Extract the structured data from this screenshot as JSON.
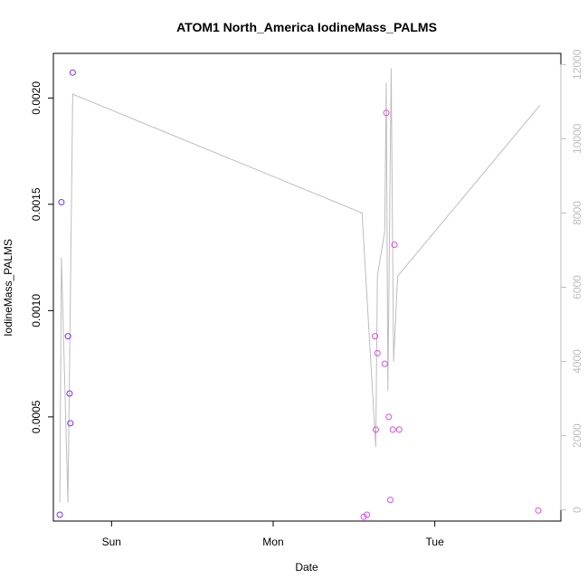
{
  "chart_data": {
    "type": "scatter",
    "title": "ATOM1 North_America IodineMass_PALMS",
    "xlabel": "Date",
    "ylabel": "IodineMass_PALMS",
    "x_ticks": [
      "Sun",
      "Mon",
      "Tue"
    ],
    "y_ticks": [
      "0.0005",
      "0.0010",
      "0.0015",
      "0.0020"
    ],
    "y2_ticks": [
      "0",
      "2000",
      "4000",
      "6000",
      "8000",
      "10000",
      "12000"
    ],
    "xlim": [
      -0.36,
      2.78
    ],
    "ylim": [
      1e-05,
      0.00221
    ],
    "y2lim": [
      -300,
      12300
    ],
    "grid": false,
    "colors": {
      "points_early": "#7a2cff",
      "points_late": "#e24ae6",
      "line": "#bdbdbd",
      "right_axis": "#bdbdbd"
    },
    "series": [
      {
        "type": "scatter",
        "x": [
          -0.32,
          -0.31,
          -0.27,
          -0.26,
          -0.255,
          -0.24,
          1.56,
          1.58,
          1.63,
          1.635,
          1.645,
          1.69,
          1.7,
          1.715,
          1.725,
          1.74,
          1.75,
          1.78,
          2.64
        ],
        "y": [
          4e-05,
          0.00151,
          0.00088,
          0.00061,
          0.00047,
          0.00212,
          3e-05,
          4e-05,
          0.00088,
          0.00044,
          0.0008,
          0.00075,
          0.00193,
          0.0005,
          0.00011,
          0.00044,
          0.00131,
          0.00044,
          6e-05
        ]
      },
      {
        "type": "line",
        "axis": "right",
        "x": [
          -0.32,
          -0.31,
          -0.27,
          -0.24,
          1.55,
          1.635,
          1.645,
          1.69,
          1.7,
          1.71,
          1.73,
          1.745,
          1.77,
          2.65
        ],
        "y": [
          200,
          6800,
          200,
          11200,
          8000,
          1700,
          6300,
          7500,
          11500,
          3200,
          11900,
          4000,
          6300,
          10900
        ]
      }
    ]
  }
}
